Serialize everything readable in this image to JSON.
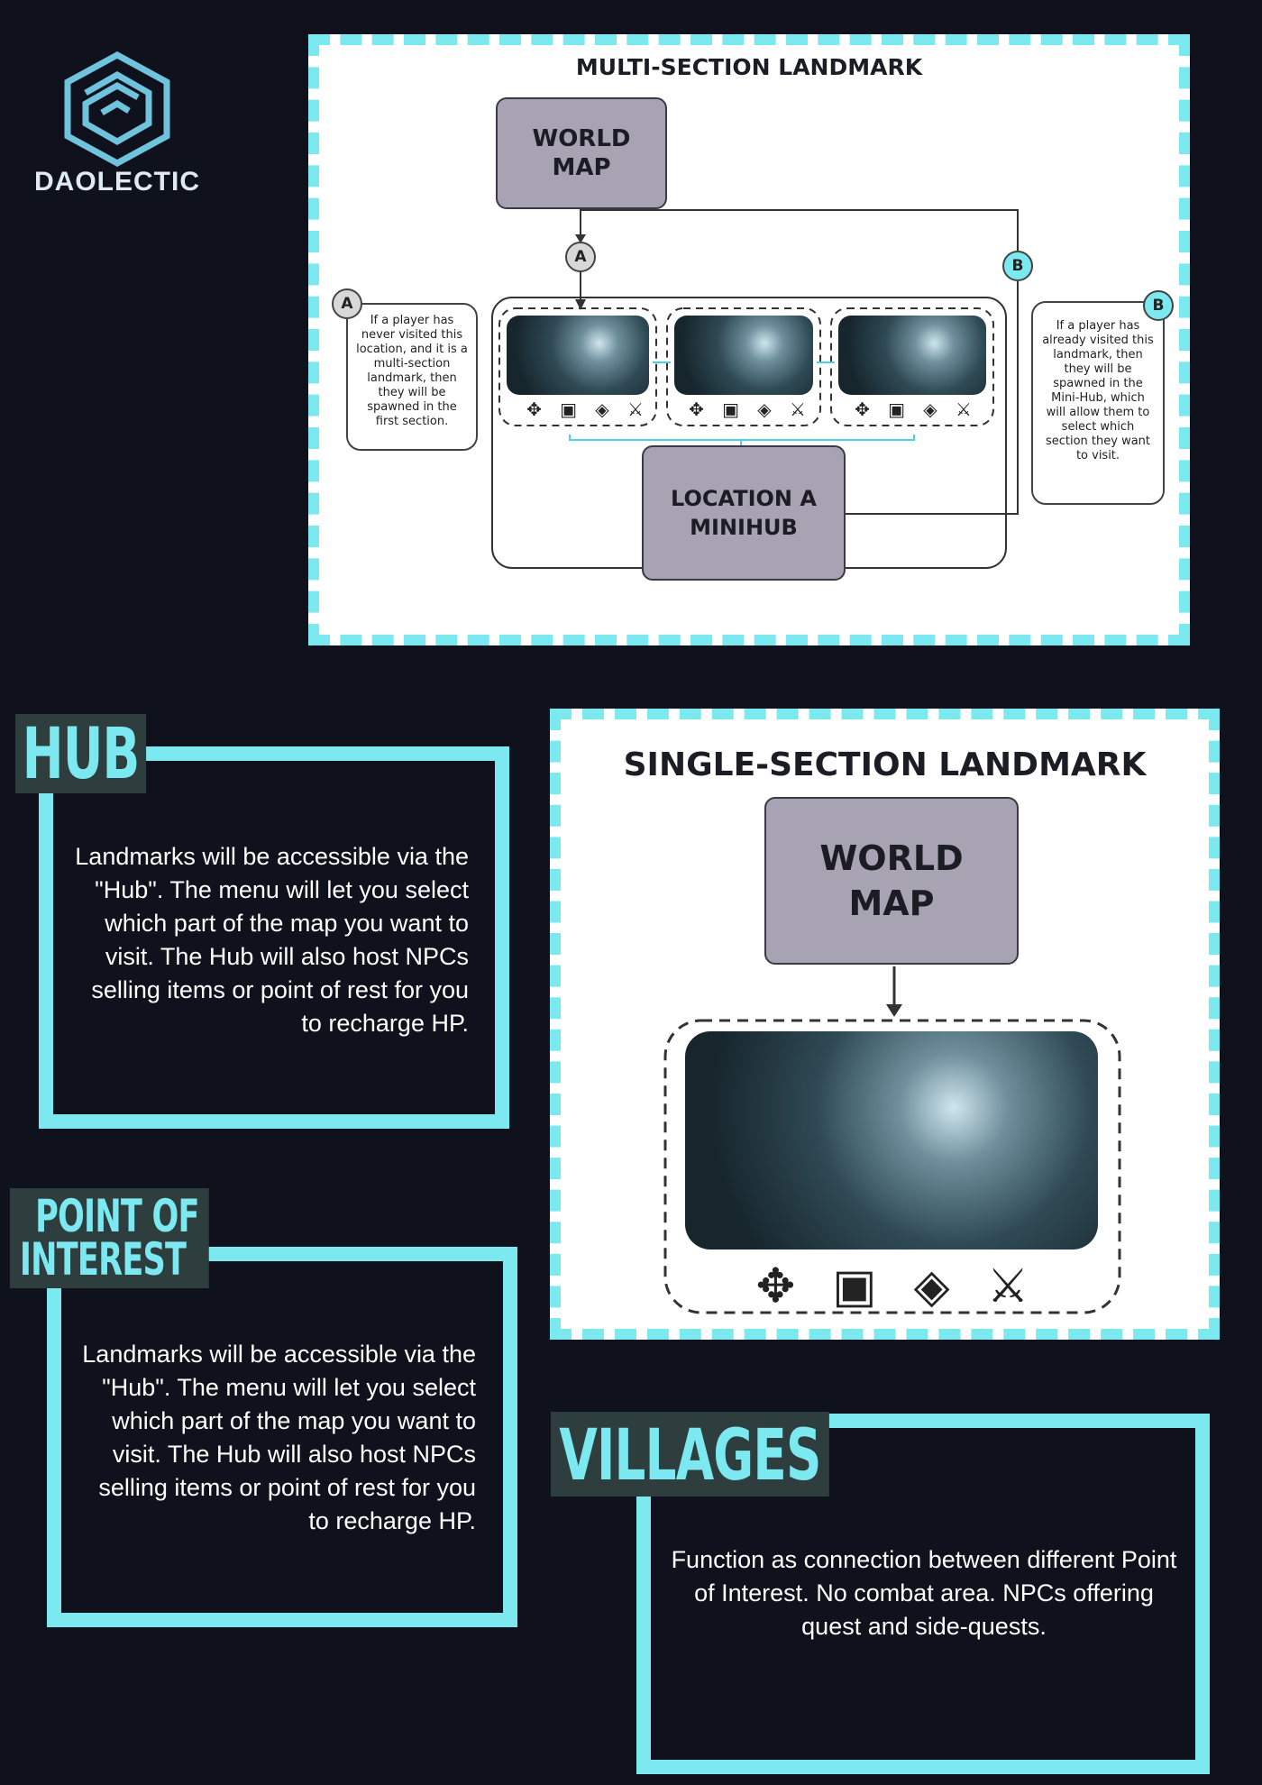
{
  "logo": {
    "text": "DAOLECTIC"
  },
  "multi": {
    "title": "MULTI-SECTION LANDMARK",
    "world_map": [
      "WORLD",
      "MAP"
    ],
    "minihub": [
      "LOCATION A",
      "MINIHUB"
    ],
    "marker_a": "A",
    "marker_b": "B",
    "note_a": "If a player has never visited this location, and it is a multi-section landmark, then they will be spawned in the first section.",
    "note_b": "If a player has already visited this landmark, then they will be spawned in the Mini-Hub, which will allow them to select which section they want to visit."
  },
  "single": {
    "title": "SINGLE-SECTION LANDMARK",
    "world_map": [
      "WORLD",
      "MAP"
    ]
  },
  "hub": {
    "title": "HUB",
    "text": "Landmarks will be accessible via the \"Hub\". The menu will let you select which part of the map you want to visit. The Hub will also host NPCs selling items or point of rest for you to recharge HP."
  },
  "poi": {
    "title_lines": [
      "POINT OF",
      "INTEREST"
    ],
    "text": "Landmarks will be accessible via the \"Hub\". The menu will let you select which part of the map you want to visit. The Hub will also host NPCs selling items or point of rest for you to recharge HP."
  },
  "villages": {
    "title": "VILLAGES",
    "text": "Function as connection between different Point of Interest. No combat area. NPCs offering quest and side-quests."
  },
  "icons": [
    "puzzle-icon",
    "book-icon",
    "diamond-icon",
    "crossed-swords-icon"
  ]
}
